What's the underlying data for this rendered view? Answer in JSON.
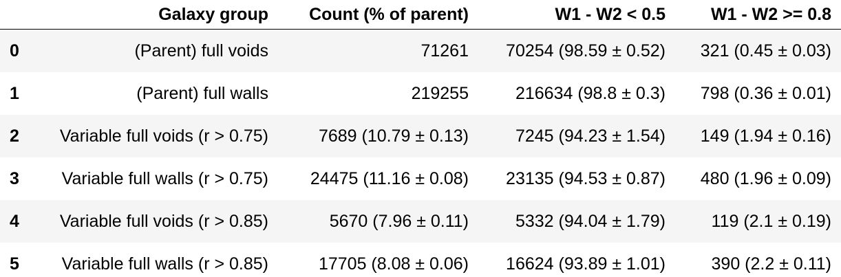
{
  "table": {
    "headers": [
      "",
      "Galaxy group",
      "Count (% of parent)",
      "W1 - W2 < 0.5",
      "W1 - W2 >= 0.8"
    ],
    "rows": [
      [
        "0",
        "(Parent) full voids",
        "71261",
        "70254 (98.59 ± 0.52)",
        "321 (0.45 ± 0.03)"
      ],
      [
        "1",
        "(Parent) full walls",
        "219255",
        "216634 (98.8 ± 0.3)",
        "798 (0.36 ± 0.01)"
      ],
      [
        "2",
        "Variable full voids (r > 0.75)",
        "7689 (10.79 ± 0.13)",
        "7245 (94.23 ± 1.54)",
        "149 (1.94 ± 0.16)"
      ],
      [
        "3",
        "Variable full walls (r > 0.75)",
        "24475 (11.16 ± 0.08)",
        "23135 (94.53 ± 0.87)",
        "480 (1.96 ± 0.09)"
      ],
      [
        "4",
        "Variable full voids (r > 0.85)",
        "5670 (7.96 ± 0.11)",
        "5332 (94.04 ± 1.79)",
        "119 (2.1 ± 0.19)"
      ],
      [
        "5",
        "Variable full walls (r > 0.85)",
        "17705 (8.08 ± 0.06)",
        "16624 (93.89 ± 1.01)",
        "390 (2.2 ± 0.11)"
      ]
    ]
  }
}
